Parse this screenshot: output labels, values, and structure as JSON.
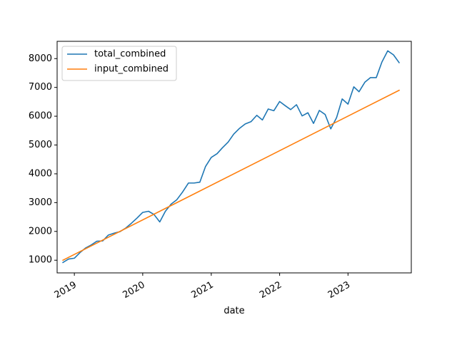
{
  "chart_data": {
    "type": "line",
    "title": "",
    "xlabel": "date",
    "ylabel": "",
    "xlim": [
      "2018-10-01",
      "2023-12-05"
    ],
    "ylim": [
      560,
      8600
    ],
    "grid": false,
    "legend_position": "upper-left",
    "x_ticks": [
      "2019-01-01",
      "2020-01-01",
      "2021-01-01",
      "2022-01-01",
      "2023-01-01"
    ],
    "x_tick_labels": [
      "2019",
      "2020",
      "2021",
      "2022",
      "2023"
    ],
    "y_ticks": [
      1000,
      2000,
      3000,
      4000,
      5000,
      6000,
      7000,
      8000
    ],
    "y_tick_labels": [
      "1000",
      "2000",
      "3000",
      "4000",
      "5000",
      "6000",
      "7000",
      "8000"
    ],
    "series": [
      {
        "name": "total_combined",
        "color": "#1f77b4",
        "x": [
          "2018-11-01",
          "2018-12-01",
          "2019-01-01",
          "2019-02-01",
          "2019-03-01",
          "2019-04-01",
          "2019-05-01",
          "2019-06-01",
          "2019-07-01",
          "2019-08-01",
          "2019-09-01",
          "2019-10-01",
          "2019-11-01",
          "2019-12-01",
          "2020-01-01",
          "2020-02-01",
          "2020-03-01",
          "2020-04-01",
          "2020-05-01",
          "2020-06-01",
          "2020-07-01",
          "2020-08-01",
          "2020-09-01",
          "2020-10-01",
          "2020-11-01",
          "2020-12-01",
          "2021-01-01",
          "2021-02-01",
          "2021-03-01",
          "2021-04-01",
          "2021-05-01",
          "2021-06-01",
          "2021-07-01",
          "2021-08-01",
          "2021-09-01",
          "2021-10-01",
          "2021-11-01",
          "2021-12-01",
          "2022-01-01",
          "2022-02-01",
          "2022-03-01",
          "2022-04-01",
          "2022-05-01",
          "2022-06-01",
          "2022-07-01",
          "2022-08-01",
          "2022-09-01",
          "2022-10-01",
          "2022-11-01",
          "2022-12-01",
          "2023-01-01",
          "2023-02-01",
          "2023-03-01",
          "2023-04-01",
          "2023-05-01",
          "2023-06-01",
          "2023-07-01",
          "2023-08-01",
          "2023-09-01",
          "2023-10-01"
        ],
        "y": [
          920,
          1040,
          1070,
          1270,
          1420,
          1530,
          1660,
          1670,
          1870,
          1940,
          1990,
          2110,
          2280,
          2460,
          2660,
          2700,
          2590,
          2330,
          2700,
          2950,
          3100,
          3370,
          3680,
          3680,
          3710,
          4250,
          4570,
          4700,
          4900,
          5100,
          5380,
          5580,
          5730,
          5810,
          6030,
          5870,
          6250,
          6190,
          6510,
          6360,
          6230,
          6400,
          6010,
          6120,
          5750,
          6200,
          6060,
          5560,
          5950,
          6600,
          6420,
          7020,
          6850,
          7180,
          7340,
          7340,
          7880,
          8270,
          8130,
          7860
        ]
      },
      {
        "name": "input_combined",
        "color": "#ff7f0e",
        "x": [
          "2018-11-01",
          "2023-10-01"
        ],
        "y": [
          1000,
          6900
        ]
      }
    ]
  }
}
